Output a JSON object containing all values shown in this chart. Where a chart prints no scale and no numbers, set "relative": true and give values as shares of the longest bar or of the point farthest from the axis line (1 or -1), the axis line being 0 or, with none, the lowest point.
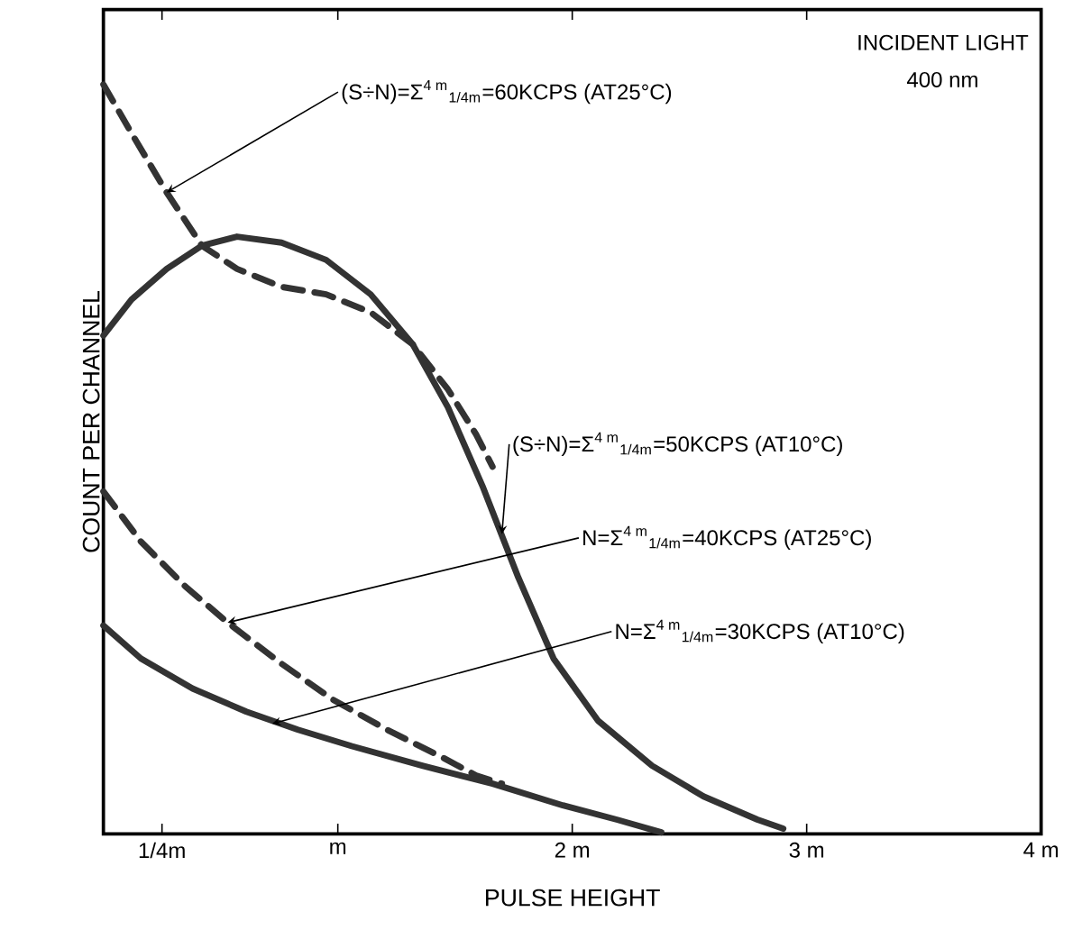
{
  "chart_data": {
    "type": "line",
    "relative": true,
    "xlabel": "PULSE HEIGHT",
    "ylabel": "COUNT PER CHANNEL",
    "xlim": [
      0,
      4
    ],
    "xticks": [
      {
        "value": 0.25,
        "label": "1/4m"
      },
      {
        "value": 1,
        "label": "m"
      },
      {
        "value": 2,
        "label": "2 m"
      },
      {
        "value": 3,
        "label": "3 m"
      },
      {
        "value": 4,
        "label": "4 m"
      }
    ],
    "marker": "none",
    "series": [
      {
        "color": "#333333",
        "line_style": "dashed",
        "x": [
          0,
          0.12,
          0.27,
          0.42,
          0.57,
          0.76,
          0.95,
          1.14,
          1.32,
          1.47,
          1.59,
          1.66
        ],
        "values": [
          1.0,
          0.935,
          0.856,
          0.785,
          0.754,
          0.73,
          0.72,
          0.696,
          0.653,
          0.593,
          0.533,
          0.49
        ]
      },
      {
        "color": "#333333",
        "line_style": "solid",
        "x": [
          0,
          0.12,
          0.27,
          0.42,
          0.57,
          0.76,
          0.95,
          1.14,
          1.32,
          1.47,
          1.62,
          1.77,
          1.92,
          2.11,
          2.34,
          2.56,
          2.79,
          2.9
        ],
        "values": [
          0.665,
          0.713,
          0.754,
          0.785,
          0.797,
          0.789,
          0.766,
          0.72,
          0.653,
          0.569,
          0.462,
          0.342,
          0.234,
          0.151,
          0.091,
          0.05,
          0.019,
          0.007
        ]
      },
      {
        "color": "#333333",
        "line_style": "dashed",
        "x": [
          0,
          0.16,
          0.35,
          0.53,
          0.76,
          0.98,
          1.21,
          1.44,
          1.59,
          1.7
        ],
        "values": [
          0.457,
          0.39,
          0.33,
          0.282,
          0.227,
          0.179,
          0.139,
          0.103,
          0.078,
          0.067
        ]
      },
      {
        "color": "#333333",
        "line_style": "solid",
        "x": [
          0,
          0.16,
          0.38,
          0.61,
          0.83,
          1.06,
          1.36,
          1.66,
          1.96,
          2.19,
          2.38
        ],
        "values": [
          0.278,
          0.234,
          0.194,
          0.163,
          0.139,
          0.117,
          0.091,
          0.067,
          0.038,
          0.019,
          0.002
        ]
      }
    ],
    "annotations": [
      {
        "text": "(S÷N)=Σ$^{4 m}$$_{1/4m}$=60KCPS (AT25°C)",
        "x": 0.27,
        "y": 0.856
      },
      {
        "text": "(S÷N)=Σ$^{4 m}$$_{1/4m}$=50KCPS (AT10°C)",
        "x": 1.7,
        "y": 0.4
      },
      {
        "text": "N=Σ$^{4 m}$$_{1/4m}$=40KCPS (AT25°C)",
        "x": 0.53,
        "y": 0.282
      },
      {
        "text": "N=Σ$^{4 m}$$_{1/4m}$=30KCPS (AT10°C)",
        "x": 0.72,
        "y": 0.147
      },
      "INCIDENT LIGHT",
      "400 nm"
    ]
  }
}
